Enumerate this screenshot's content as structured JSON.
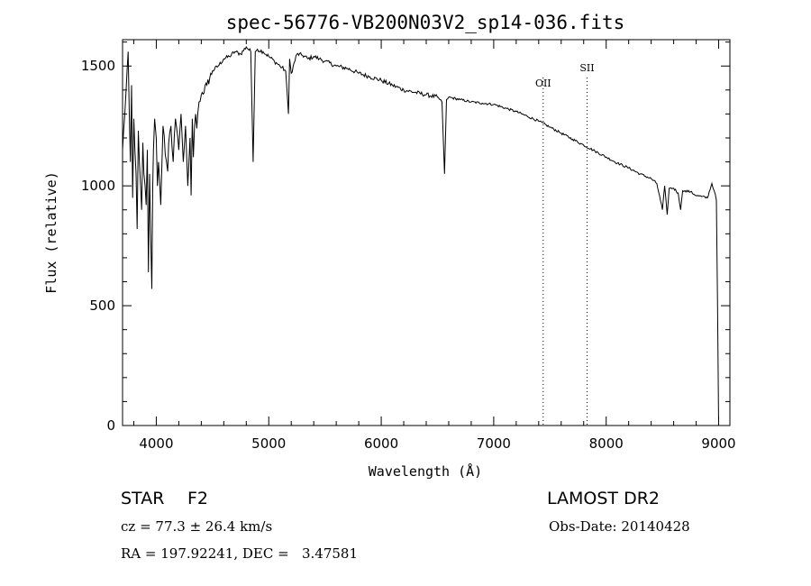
{
  "chart_data": {
    "type": "line",
    "title": "spec-56776-VB200N03V2_sp14-036.fits",
    "xlabel": "Wavelength (Å)",
    "ylabel": "Flux (relative)",
    "xlim": [
      3700,
      9100
    ],
    "ylim": [
      0,
      1610
    ],
    "x_ticks": [
      {
        "value": 4000,
        "label": "4000"
      },
      {
        "value": 5000,
        "label": "5000"
      },
      {
        "value": 6000,
        "label": "6000"
      },
      {
        "value": 7000,
        "label": "7000"
      },
      {
        "value": 8000,
        "label": "8000"
      },
      {
        "value": 9000,
        "label": "9000"
      }
    ],
    "y_ticks": [
      {
        "value": 0,
        "label": "0"
      },
      {
        "value": 500,
        "label": "500"
      },
      {
        "value": 1000,
        "label": "1000"
      },
      {
        "value": 1500,
        "label": "1500"
      }
    ],
    "grid": false,
    "line_color": "#000000",
    "emission_lines": [
      {
        "label": "OII",
        "wavelength": 7440
      },
      {
        "label": "SII",
        "wavelength": 7830
      }
    ],
    "series": [
      {
        "x": [
          3700,
          3720,
          3740,
          3750,
          3760,
          3770,
          3780,
          3790,
          3800,
          3810,
          3820,
          3830,
          3840,
          3850,
          3860,
          3870,
          3880,
          3890,
          3900,
          3910,
          3920,
          3930,
          3940,
          3950,
          3960,
          3968,
          3975,
          3985,
          4000,
          4010,
          4020,
          4040,
          4060,
          4080,
          4101,
          4110,
          4130,
          4150,
          4170,
          4200,
          4220,
          4240,
          4260,
          4280,
          4300,
          4310,
          4320,
          4330,
          4340,
          4350,
          4360,
          4380,
          4400,
          4450,
          4500,
          4550,
          4600,
          4650,
          4700,
          4750,
          4800,
          4840,
          4861,
          4880,
          4900,
          4950,
          5000,
          5050,
          5100,
          5150,
          5175,
          5185,
          5200,
          5250,
          5300,
          5350,
          5400,
          5450,
          5500,
          5600,
          5700,
          5800,
          5900,
          6000,
          6100,
          6200,
          6300,
          6400,
          6500,
          6540,
          6563,
          6580,
          6600,
          6700,
          6800,
          6900,
          7000,
          7100,
          7200,
          7300,
          7400,
          7500,
          7600,
          7700,
          7800,
          7900,
          8000,
          8100,
          8200,
          8300,
          8400,
          8450,
          8500,
          8520,
          8542,
          8560,
          8600,
          8640,
          8662,
          8680,
          8700,
          8750,
          8800,
          8850,
          8900,
          8940,
          8960,
          8980,
          8990,
          9000
        ],
        "y": [
          1150,
          1300,
          1480,
          1560,
          1300,
          1100,
          1420,
          950,
          1280,
          1150,
          1050,
          820,
          1230,
          1100,
          1000,
          900,
          1180,
          1050,
          1000,
          920,
          1150,
          640,
          1050,
          800,
          570,
          1000,
          1150,
          1280,
          1200,
          1000,
          1100,
          920,
          1250,
          1130,
          1060,
          1180,
          1250,
          1100,
          1280,
          1150,
          1300,
          1100,
          1250,
          1000,
          1200,
          960,
          1280,
          1120,
          1250,
          1300,
          1240,
          1350,
          1380,
          1420,
          1480,
          1500,
          1530,
          1540,
          1560,
          1550,
          1580,
          1560,
          1100,
          1560,
          1570,
          1560,
          1540,
          1520,
          1500,
          1480,
          1300,
          1530,
          1470,
          1550,
          1545,
          1530,
          1540,
          1530,
          1520,
          1500,
          1490,
          1470,
          1455,
          1440,
          1420,
          1400,
          1390,
          1380,
          1370,
          1350,
          1050,
          1360,
          1370,
          1360,
          1350,
          1345,
          1340,
          1325,
          1310,
          1290,
          1270,
          1245,
          1220,
          1195,
          1170,
          1145,
          1120,
          1095,
          1075,
          1050,
          1030,
          1010,
          900,
          1000,
          880,
          990,
          990,
          970,
          900,
          980,
          980,
          975,
          960,
          955,
          950,
          1010,
          980,
          940,
          500,
          0
        ]
      }
    ]
  },
  "info": {
    "object_type": "STAR",
    "subclass": "F2",
    "redshift_line": "cz = 77.3 ± 26.4 km/s",
    "coords_line": "RA = 197.92241, DEC =   3.47581",
    "survey": "LAMOST DR2",
    "obs_date": "Obs-Date: 20140428"
  }
}
